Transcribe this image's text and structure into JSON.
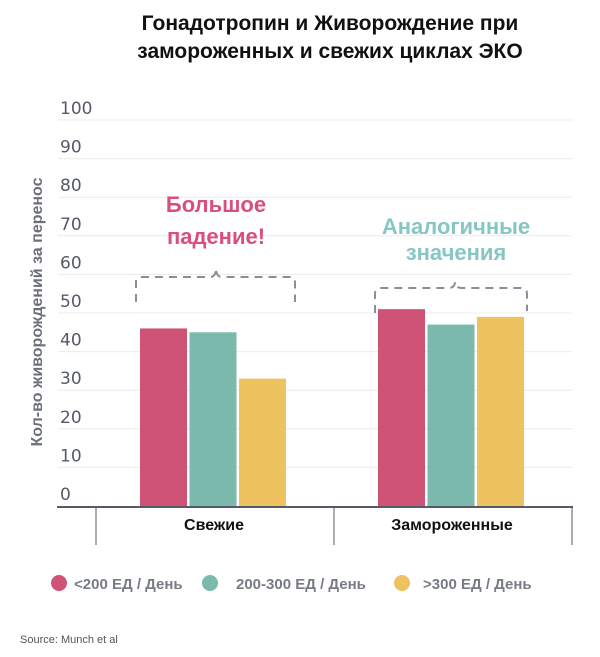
{
  "chart_data": {
    "type": "bar",
    "title": [
      "Гонадотропин и Живорождение при",
      "замороженных и свежих циклах ЭКО"
    ],
    "xlabel": "",
    "ylabel": "Кол-во живорождений за перенос",
    "ylim": [
      0,
      100
    ],
    "yticks": [
      "0",
      "10",
      "20",
      "30",
      "40",
      "50",
      "60",
      "70",
      "80",
      "90",
      "100"
    ],
    "grid": true,
    "categories": [
      "Свежие",
      "Замороженные"
    ],
    "series": [
      {
        "name": "<200 ЕД / День",
        "color": "#cf5277",
        "values": [
          46,
          51
        ]
      },
      {
        "name": "200-300 ЕД / День",
        "color": "#7ab9ab",
        "values": [
          45,
          47
        ]
      },
      {
        "name": ">300 ЕД / День",
        "color": "#eec25f",
        "values": [
          33,
          49
        ]
      }
    ],
    "legend_placement": "bottom",
    "annotations": [
      {
        "lines": [
          "Большое",
          "падение!"
        ],
        "color": "#d94f7a",
        "category": "Свежие"
      },
      {
        "lines": [
          "Аналогичные",
          "значения"
        ],
        "color": "#86c6c4",
        "category": "Замороженные"
      }
    ],
    "source": "Source: Munch et al"
  }
}
